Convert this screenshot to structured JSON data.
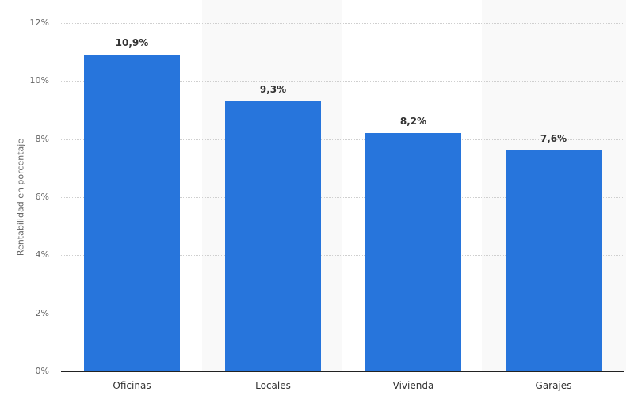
{
  "chart_data": {
    "type": "bar",
    "title": "",
    "xlabel": "",
    "ylabel": "Rentabilidad en porcentaje",
    "categories": [
      "Oficinas",
      "Locales",
      "Vivienda",
      "Garajes"
    ],
    "values": [
      10.9,
      9.3,
      8.2,
      7.6
    ],
    "value_labels": [
      "10,9%",
      "9,3%",
      "8,2%",
      "7,6%"
    ],
    "ylim": [
      0,
      12
    ],
    "yticks": [
      "0%",
      "2%",
      "4%",
      "6%",
      "8%",
      "10%",
      "12%"
    ],
    "grid": true,
    "bar_color": "#2775dc",
    "legend": null
  }
}
